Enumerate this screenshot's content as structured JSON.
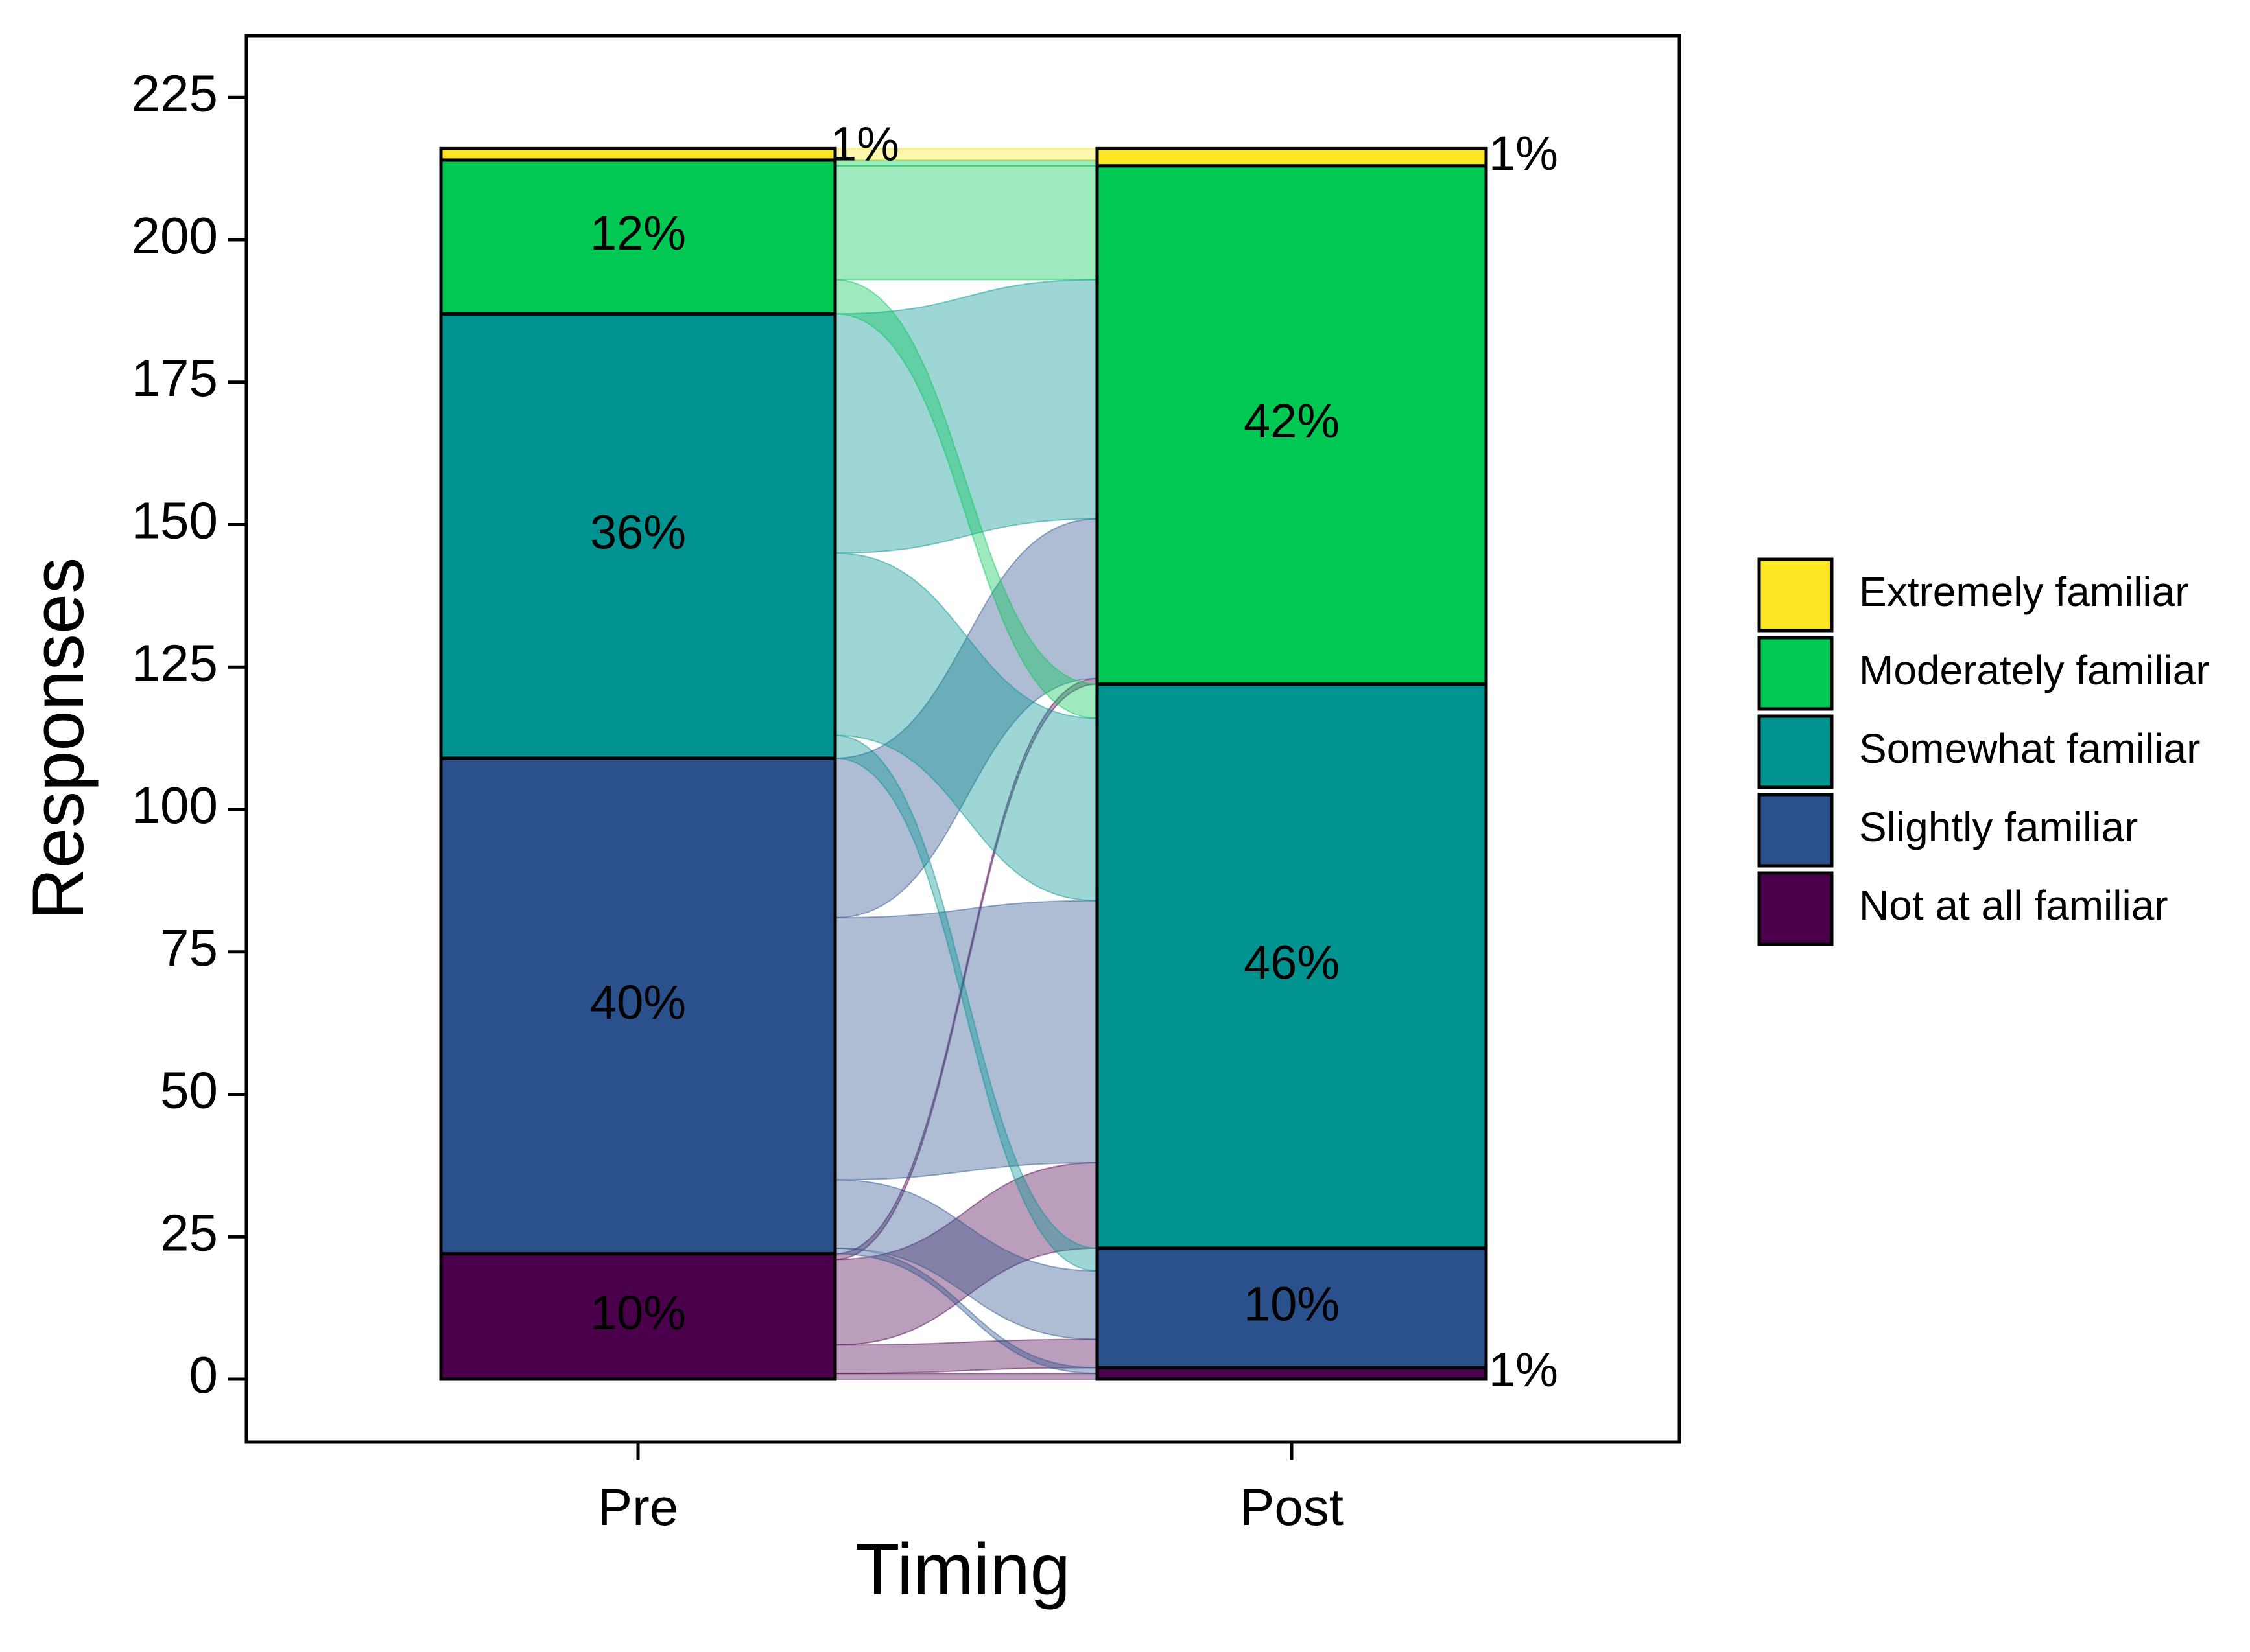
{
  "chart_data": {
    "type": "alluvial",
    "xlabel": "Timing",
    "ylabel": "Responses",
    "ylim": [
      0,
      230
    ],
    "yticks": [
      0,
      25,
      50,
      75,
      100,
      125,
      150,
      175,
      200,
      225
    ],
    "categories": [
      "Pre",
      "Post"
    ],
    "levels": [
      "Not at all familiar",
      "Slightly familiar",
      "Somewhat familiar",
      "Moderately familiar",
      "Extremely familiar"
    ],
    "level_colors": {
      "Extremely familiar": "#FDE725",
      "Moderately familiar": "#00C853",
      "Somewhat familiar": "#009390",
      "Slightly familiar": "#2B518C",
      "Not at all familiar": "#4B004B"
    },
    "stacks": {
      "Pre": [
        {
          "level": "Not at all familiar",
          "count": 22,
          "label": "10%"
        },
        {
          "level": "Slightly familiar",
          "count": 87,
          "label": "40%"
        },
        {
          "level": "Somewhat familiar",
          "count": 78,
          "label": "36%"
        },
        {
          "level": "Moderately familiar",
          "count": 27,
          "label": "12%"
        },
        {
          "level": "Extremely familiar",
          "count": 2,
          "label": "1%"
        }
      ],
      "Post": [
        {
          "level": "Not at all familiar",
          "count": 2,
          "label": "1%"
        },
        {
          "level": "Slightly familiar",
          "count": 21,
          "label": "10%"
        },
        {
          "level": "Somewhat familiar",
          "count": 99,
          "label": "46%"
        },
        {
          "level": "Moderately familiar",
          "count": 91,
          "label": "42%"
        },
        {
          "level": "Extremely familiar",
          "count": 3,
          "label": "1%"
        }
      ]
    },
    "flows": [
      {
        "from": "Not at all familiar",
        "to": "Not at all familiar",
        "count": 1
      },
      {
        "from": "Not at all familiar",
        "to": "Slightly familiar",
        "count": 5
      },
      {
        "from": "Not at all familiar",
        "to": "Somewhat familiar",
        "count": 15
      },
      {
        "from": "Not at all familiar",
        "to": "Moderately familiar",
        "count": 1
      },
      {
        "from": "Slightly familiar",
        "to": "Not at all familiar",
        "count": 1
      },
      {
        "from": "Slightly familiar",
        "to": "Slightly familiar",
        "count": 12
      },
      {
        "from": "Slightly familiar",
        "to": "Somewhat familiar",
        "count": 46
      },
      {
        "from": "Slightly familiar",
        "to": "Moderately familiar",
        "count": 28
      },
      {
        "from": "Somewhat familiar",
        "to": "Slightly familiar",
        "count": 4
      },
      {
        "from": "Somewhat familiar",
        "to": "Somewhat familiar",
        "count": 32
      },
      {
        "from": "Somewhat familiar",
        "to": "Moderately familiar",
        "count": 42
      },
      {
        "from": "Moderately familiar",
        "to": "Somewhat familiar",
        "count": 6
      },
      {
        "from": "Moderately familiar",
        "to": "Moderately familiar",
        "count": 20
      },
      {
        "from": "Moderately familiar",
        "to": "Extremely familiar",
        "count": 1
      },
      {
        "from": "Extremely familiar",
        "to": "Extremely familiar",
        "count": 2
      }
    ],
    "legend_position": "right",
    "grid": false
  }
}
